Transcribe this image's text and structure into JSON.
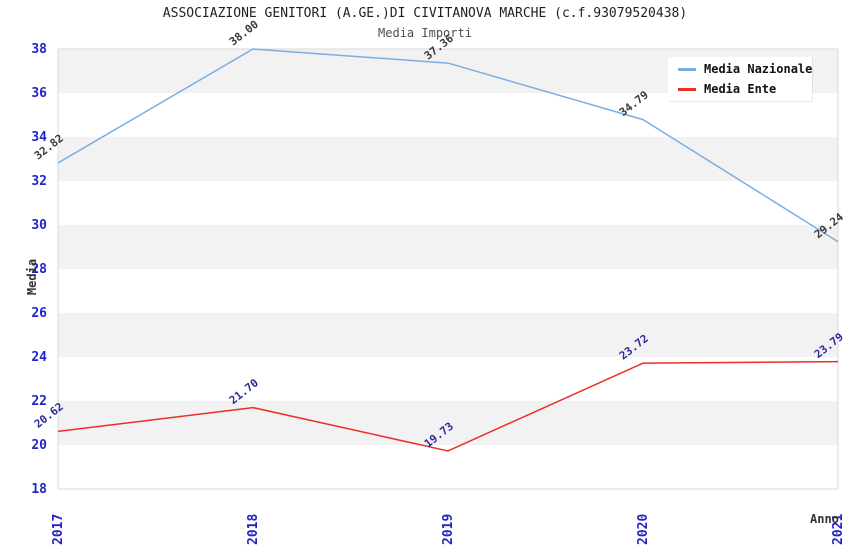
{
  "header": {
    "title": "ASSOCIAZIONE GENITORI (A.GE.)DI CIVITANOVA MARCHE (c.f.93079520438)",
    "subtitle": "Media Importi"
  },
  "legend": {
    "position": "top-right",
    "items": [
      {
        "label": "Media Nazionale",
        "color": "#7aaee3"
      },
      {
        "label": "Media Ente",
        "color": "#ea2f27"
      }
    ]
  },
  "axes": {
    "x_label": "Anno",
    "y_label": "Media",
    "tick_color": "#2222cc",
    "x_ticks": [
      "2017",
      "2018",
      "2019",
      "2020",
      "2021"
    ],
    "y_ticks": [
      18,
      20,
      22,
      24,
      26,
      28,
      30,
      32,
      34,
      36,
      38
    ]
  },
  "chart_data": {
    "type": "line",
    "title": "ASSOCIAZIONE GENITORI (A.GE.)DI CIVITANOVA MARCHE (c.f.93079520438)",
    "subtitle": "Media Importi",
    "xlabel": "Anno",
    "ylabel": "Media",
    "x": [
      2017,
      2018,
      2019,
      2020,
      2021
    ],
    "series": [
      {
        "name": "Media Nazionale",
        "color": "#7aaee3",
        "label_color": "#3a3a3a",
        "values": [
          32.82,
          38.0,
          37.36,
          34.79,
          29.24
        ],
        "point_labels": [
          "32.82",
          "38.00",
          "37.36",
          "34.79",
          "29.24"
        ]
      },
      {
        "name": "Media Ente",
        "color": "#ea2f27",
        "label_color": "#2b2b9e",
        "values": [
          20.62,
          21.7,
          19.73,
          23.72,
          23.79
        ],
        "point_labels": [
          "20.62",
          "21.70",
          "19.73",
          "23.72",
          "23.79"
        ]
      }
    ],
    "ylim": [
      18,
      38
    ],
    "ytick_step": 2,
    "grid": "alternating-horizontal-bands",
    "band_colors": [
      "#f2f2f2",
      "#ffffff"
    ],
    "plot_border_color": "#d9d9d9",
    "legend_position": "top-right",
    "annotation_rotation_deg": -38
  }
}
